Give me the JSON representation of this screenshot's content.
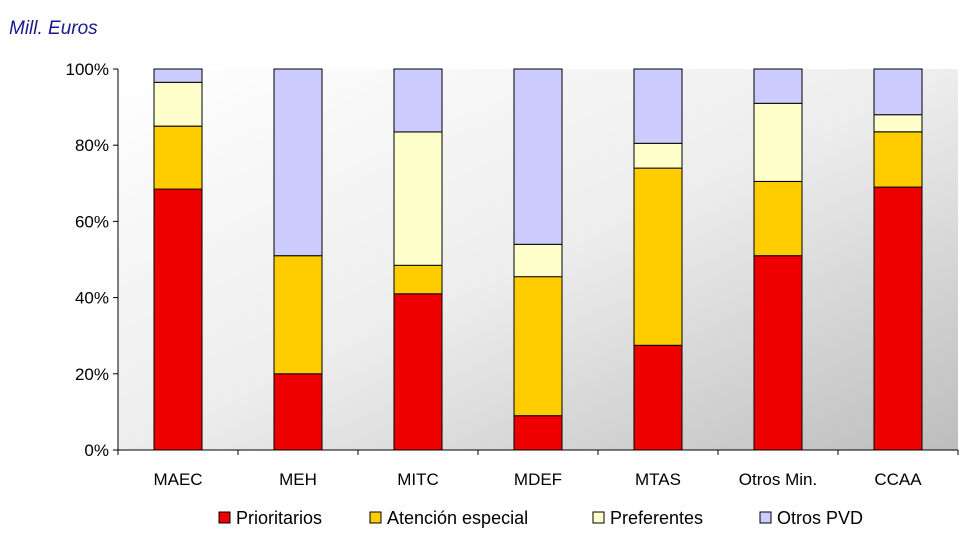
{
  "chart_data": {
    "type": "bar",
    "stacked": true,
    "percent_stacked": true,
    "unit_label": "Mill. Euros",
    "categories": [
      "MAEC",
      "MEH",
      "MITC",
      "MDEF",
      "MTAS",
      "Otros Min.",
      "CCAA"
    ],
    "series": [
      {
        "name": "Prioritarios",
        "color": "#ee0000",
        "values": [
          68.5,
          20.0,
          41.0,
          9.0,
          27.5,
          51.0,
          69.0
        ]
      },
      {
        "name": "Atención especial",
        "color": "#ffcc00",
        "values": [
          16.5,
          31.0,
          7.5,
          36.5,
          46.5,
          19.5,
          14.5
        ]
      },
      {
        "name": "Preferentes",
        "color": "#ffffcc",
        "values": [
          11.5,
          0.0,
          35.0,
          8.5,
          6.5,
          20.5,
          4.5
        ]
      },
      {
        "name": "Otros PVD",
        "color": "#ccccff",
        "values": [
          3.5,
          49.0,
          16.5,
          46.0,
          19.5,
          9.0,
          12.0
        ]
      }
    ],
    "ylim": [
      0,
      100
    ],
    "yticks": [
      "0%",
      "20%",
      "40%",
      "60%",
      "80%",
      "100%"
    ],
    "xlabel": "",
    "ylabel": "",
    "legend_position": "bottom",
    "grid": false
  }
}
